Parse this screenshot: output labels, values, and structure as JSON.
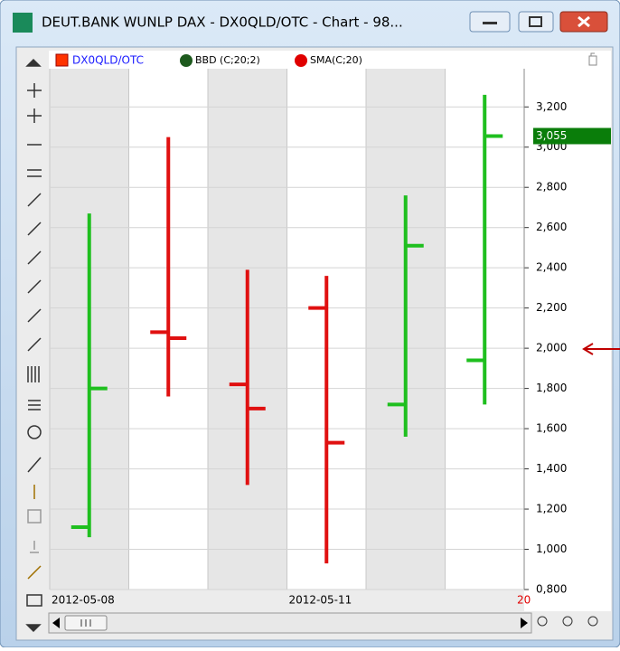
{
  "window": {
    "title": "DEUT.BANK WUNLP DAX - DX0QLD/OTC - Chart - 98..."
  },
  "legend": {
    "symbol": "DX0QLD/OTC",
    "indicator1": "BBD (C;20;2)",
    "indicator2": "SMA(C;20)"
  },
  "chart_data": {
    "type": "ohlc",
    "categories": [
      "2012-05-08",
      null,
      null,
      "2012-05-11",
      null,
      null
    ],
    "open": [
      1.11,
      2.08,
      1.82,
      2.2,
      1.72,
      1.94
    ],
    "high": [
      2.67,
      3.05,
      2.39,
      2.36,
      2.76,
      3.26
    ],
    "low": [
      1.06,
      1.76,
      1.32,
      0.93,
      1.56,
      1.72
    ],
    "close": [
      1.8,
      2.05,
      1.7,
      1.53,
      2.51,
      3.055
    ],
    "bar_colors": [
      "#1fbf1f",
      "#e01010",
      "#e01010",
      "#e01010",
      "#1fbf1f",
      "#1fbf1f"
    ],
    "ylim": [
      0.8,
      3.39
    ],
    "yticks": [
      {
        "value": 0.8,
        "label": "0,800"
      },
      {
        "value": 1.0,
        "label": "1,000"
      },
      {
        "value": 1.2,
        "label": "1,200"
      },
      {
        "value": 1.4,
        "label": "1,400"
      },
      {
        "value": 1.6,
        "label": "1,600"
      },
      {
        "value": 1.8,
        "label": "1,800"
      },
      {
        "value": 2.0,
        "label": "2,000"
      },
      {
        "value": 2.2,
        "label": "2,200"
      },
      {
        "value": 2.4,
        "label": "2,400"
      },
      {
        "value": 2.6,
        "label": "2,600"
      },
      {
        "value": 2.8,
        "label": "2,800"
      },
      {
        "value": 3.0,
        "label": "3,000"
      },
      {
        "value": 3.2,
        "label": "3,200"
      }
    ],
    "last_price": {
      "value": 3.055,
      "label": "3,055"
    },
    "x_cursor_label": "20",
    "grid": true
  }
}
